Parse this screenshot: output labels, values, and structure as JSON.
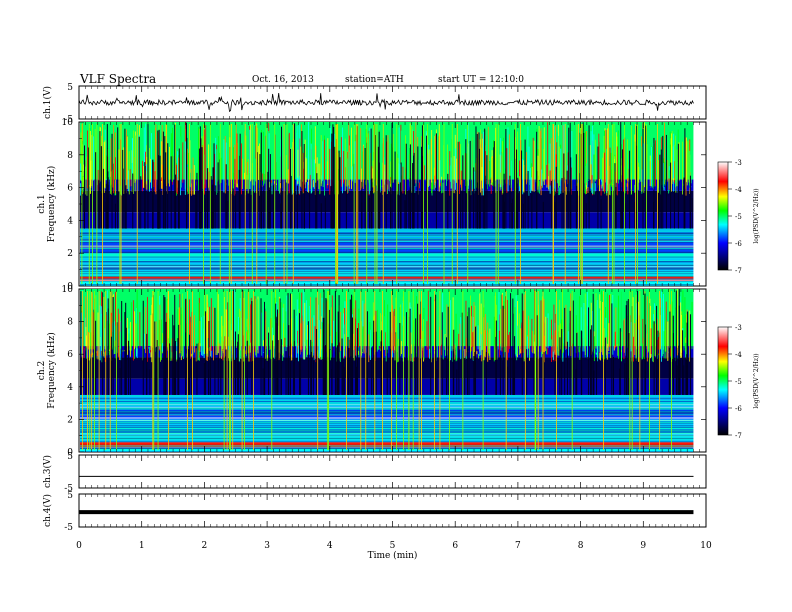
{
  "header": {
    "title": "VLF Spectra",
    "date": "Oct. 16, 2013",
    "station": "station=ATH",
    "start": "start UT = 12:10:0"
  },
  "chart_data": [
    {
      "type": "line",
      "panel": "ch1-waveform",
      "ylabel": "ch.1(V)",
      "yticks": [
        "5",
        "-5"
      ],
      "ylim": [
        -5,
        5
      ],
      "series": [
        {
          "values_description_mean": 0
        }
      ]
    },
    {
      "type": "heatmap",
      "panel": "ch1-spectrogram",
      "ylabel_top": "ch.1",
      "ylabel": "Frequency (kHz)",
      "yticks": [
        "0",
        "2",
        "4",
        "6",
        "8",
        "10"
      ],
      "ylim": [
        0,
        10
      ],
      "colorbar": {
        "label": "log(PSD(V^2/Hz))",
        "ticks": [
          "-3",
          "-4",
          "-5",
          "-6",
          "-7"
        ],
        "range": [
          -7,
          -3
        ]
      }
    },
    {
      "type": "heatmap",
      "panel": "ch2-spectrogram",
      "ylabel_top": "ch.2",
      "ylabel": "Frequency (kHz)",
      "yticks": [
        "0",
        "2",
        "4",
        "6",
        "8",
        "10"
      ],
      "ylim": [
        0,
        10
      ],
      "colorbar": {
        "label": "log(PSD(V^2/Hz))",
        "ticks": [
          "-3",
          "-4",
          "-5",
          "-6",
          "-7"
        ],
        "range": [
          -7,
          -3
        ]
      }
    },
    {
      "type": "line",
      "panel": "ch3-waveform",
      "ylabel": "ch.3(V)",
      "yticks": [
        "5",
        "-5"
      ],
      "ylim": [
        -5,
        5
      ],
      "series": [
        {
          "value": -1.5
        }
      ]
    },
    {
      "type": "line",
      "panel": "ch4-waveform",
      "ylabel": "ch.4(V)",
      "yticks": [
        "5",
        "-5"
      ],
      "ylim": [
        -5,
        5
      ],
      "series": [
        {
          "value": -0.5
        }
      ]
    }
  ],
  "xaxis": {
    "label": "Time (min)",
    "ticks": [
      "0",
      "1",
      "2",
      "3",
      "4",
      "5",
      "6",
      "7",
      "8",
      "9",
      "10"
    ],
    "xlim": [
      0,
      10
    ],
    "data_end": 9.8
  },
  "colors": {
    "colormap": [
      "#000000",
      "#000044",
      "#0000ff",
      "#00ffff",
      "#00ff00",
      "#ffff00",
      "#ff0000",
      "#ffffff"
    ]
  }
}
